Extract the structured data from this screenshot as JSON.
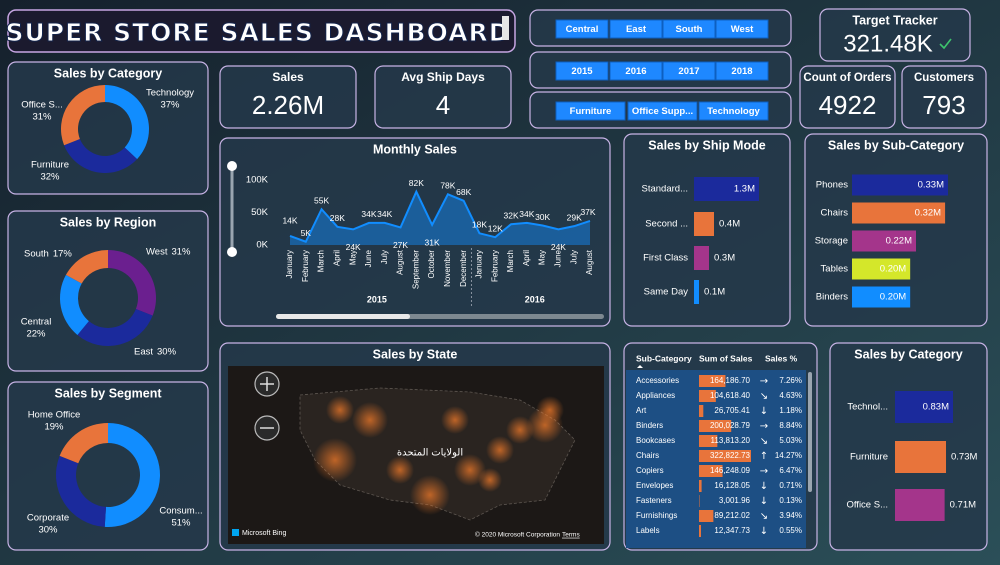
{
  "header": {
    "title": "SUPER STORE SALES DASHBOARD"
  },
  "slicers": {
    "region": [
      "Central",
      "East",
      "South",
      "West"
    ],
    "year": [
      "2015",
      "2016",
      "2017",
      "2018"
    ],
    "category": [
      "Furniture",
      "Office Supp...",
      "Technology"
    ]
  },
  "cards": [
    {
      "label": "Target Tracker",
      "value": "321.48K"
    },
    {
      "label": "Sales",
      "value": "2.26M"
    },
    {
      "label": "Avg Ship Days",
      "value": "4"
    },
    {
      "label": "Count of Orders",
      "value": "4922"
    },
    {
      "label": "Customers",
      "value": "793"
    }
  ],
  "chart_data": [
    {
      "type": "donut",
      "title": "Sales by Category",
      "categories": [
        "Technology",
        "Furniture",
        "Office S..."
      ],
      "values": [
        37,
        32,
        31
      ],
      "value_labels": [
        "37%",
        "32%",
        "31%"
      ],
      "colors": [
        "#118dff",
        "#1b2a9c",
        "#e8743b"
      ]
    },
    {
      "type": "donut",
      "title": "Sales by Region",
      "categories": [
        "West",
        "East",
        "Central",
        "South"
      ],
      "values": [
        31,
        30,
        22,
        17
      ],
      "value_labels": [
        "31%",
        "30%",
        "22%",
        "17%"
      ],
      "colors": [
        "#6b1f8f",
        "#1b2a9c",
        "#118dff",
        "#e8743b"
      ]
    },
    {
      "type": "donut",
      "title": "Sales by Segment",
      "categories": [
        "Consum...",
        "Corporate",
        "Home Office"
      ],
      "values": [
        51,
        30,
        19
      ],
      "value_labels": [
        "51%",
        "30%",
        "19%"
      ],
      "colors": [
        "#118dff",
        "#1b2a9c",
        "#e8743b"
      ]
    },
    {
      "type": "area",
      "title": "Monthly Sales",
      "color": "#118dff",
      "groups": [
        {
          "label": "2015",
          "categories": [
            "January",
            "February",
            "March",
            "April",
            "May",
            "June",
            "July",
            "August",
            "September",
            "October",
            "November",
            "December"
          ]
        },
        {
          "label": "2016",
          "categories": [
            "January",
            "February",
            "March",
            "April",
            "May",
            "June",
            "July",
            "August"
          ]
        }
      ],
      "values": [
        14000,
        5000,
        55000,
        28000,
        24000,
        34000,
        34000,
        27000,
        82000,
        31000,
        78000,
        68000,
        18000,
        12000,
        32000,
        34000,
        30000,
        24000,
        29000,
        37000
      ],
      "value_labels": [
        "14K",
        "5K",
        "55K",
        "28K",
        "24K",
        "34K",
        "34K",
        "27K",
        "82K",
        "31K",
        "78K",
        "68K",
        "18K",
        "12K",
        "32K",
        "34K",
        "30K",
        "24K",
        "29K",
        "37K"
      ],
      "ylim": [
        0,
        100000
      ],
      "yticks": [
        {
          "value": 0,
          "label": "0K"
        },
        {
          "value": 50000,
          "label": "50K"
        },
        {
          "value": 100000,
          "label": "100K"
        }
      ]
    },
    {
      "type": "hbar",
      "title": "Sales by Ship Mode",
      "categories": [
        "Standard...",
        "Second ...",
        "First Class",
        "Same Day"
      ],
      "values": [
        1.3,
        0.4,
        0.3,
        0.1
      ],
      "value_labels": [
        "1.3M",
        "0.4M",
        "0.3M",
        "0.1M"
      ],
      "colors": [
        "#1b2a9c",
        "#e8743b",
        "#a4358b",
        "#118dff"
      ]
    },
    {
      "type": "hbar",
      "title": "Sales by Sub-Category",
      "categories": [
        "Phones",
        "Chairs",
        "Storage",
        "Tables",
        "Binders"
      ],
      "values": [
        0.33,
        0.32,
        0.22,
        0.2,
        0.2
      ],
      "value_labels": [
        "0.33M",
        "0.32M",
        "0.22M",
        "0.20M",
        "0.20M"
      ],
      "colors": [
        "#1b2a9c",
        "#e8743b",
        "#a4358b",
        "#d4e72a",
        "#118dff"
      ]
    },
    {
      "type": "hbar",
      "title": "Sales by Category",
      "categories": [
        "Technol...",
        "Furniture",
        "Office S..."
      ],
      "values": [
        0.83,
        0.73,
        0.71
      ],
      "value_labels": [
        "0.83M",
        "0.73M",
        "0.71M"
      ],
      "colors": [
        "#1b2a9c",
        "#e8743b",
        "#a4358b"
      ]
    }
  ],
  "map": {
    "title": "Sales by State",
    "country": "الولايات المتحدة",
    "provider": "Microsoft Bing",
    "copyright": "© 2020 Microsoft Corporation",
    "terms": "Terms"
  },
  "table": {
    "columns": [
      "Sub-Category",
      "Sum of Sales",
      "Sales %"
    ],
    "rows": [
      {
        "name": "Accessories",
        "sales": 164186.7,
        "sales_label": "164,186.70",
        "trend": "→",
        "share": "7.26%"
      },
      {
        "name": "Appliances",
        "sales": 104618.4,
        "sales_label": "104,618.40",
        "trend": "↘",
        "share": "4.63%"
      },
      {
        "name": "Art",
        "sales": 26705.41,
        "sales_label": "26,705.41",
        "trend": "↓",
        "share": "1.18%"
      },
      {
        "name": "Binders",
        "sales": 200028.79,
        "sales_label": "200,028.79",
        "trend": "→",
        "share": "8.84%"
      },
      {
        "name": "Bookcases",
        "sales": 113813.2,
        "sales_label": "113,813.20",
        "trend": "↘",
        "share": "5.03%"
      },
      {
        "name": "Chairs",
        "sales": 322822.73,
        "sales_label": "322,822.73",
        "trend": "↑",
        "share": "14.27%"
      },
      {
        "name": "Copiers",
        "sales": 146248.09,
        "sales_label": "146,248.09",
        "trend": "→",
        "share": "6.47%"
      },
      {
        "name": "Envelopes",
        "sales": 16128.05,
        "sales_label": "16,128.05",
        "trend": "↓",
        "share": "0.71%"
      },
      {
        "name": "Fasteners",
        "sales": 3001.96,
        "sales_label": "3,001.96",
        "trend": "↓",
        "share": "0.13%"
      },
      {
        "name": "Furnishings",
        "sales": 89212.02,
        "sales_label": "89,212.02",
        "trend": "↘",
        "share": "3.94%"
      },
      {
        "name": "Labels",
        "sales": 12347.73,
        "sales_label": "12,347.73",
        "trend": "↓",
        "share": "0.55%"
      }
    ]
  }
}
